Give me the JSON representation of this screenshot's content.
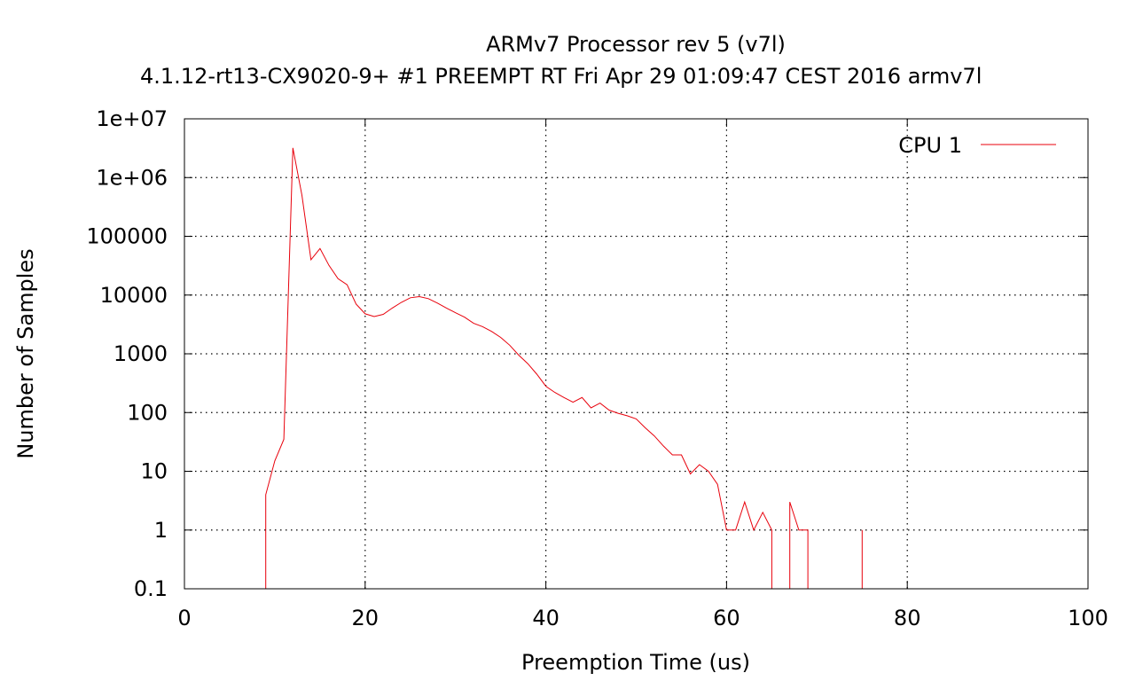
{
  "chart_data": {
    "type": "line",
    "title": "ARMv7 Processor rev 5 (v7l)",
    "subtitle": "4.1.12-rt13-CX9020-9+ #1 PREEMPT RT Fri Apr 29 01:09:47 CEST 2016 armv7l",
    "xlabel": "Preemption Time (us)",
    "ylabel": "Number of Samples",
    "xlim": [
      0,
      100
    ],
    "ylim": [
      0.1,
      10000000
    ],
    "yscale": "log",
    "grid": true,
    "legend_position": "top-right",
    "x_ticks": [
      {
        "value": 0,
        "label": "0"
      },
      {
        "value": 20,
        "label": "20"
      },
      {
        "value": 40,
        "label": "40"
      },
      {
        "value": 60,
        "label": "60"
      },
      {
        "value": 80,
        "label": "80"
      },
      {
        "value": 100,
        "label": "100"
      }
    ],
    "y_ticks": [
      {
        "value": 0.1,
        "label": "0.1"
      },
      {
        "value": 1,
        "label": "1"
      },
      {
        "value": 10,
        "label": "10"
      },
      {
        "value": 100,
        "label": "100"
      },
      {
        "value": 1000,
        "label": "1000"
      },
      {
        "value": 10000,
        "label": "10000"
      },
      {
        "value": 100000,
        "label": "100000"
      },
      {
        "value": 1000000,
        "label": "1e+06"
      },
      {
        "value": 10000000,
        "label": "1e+07"
      }
    ],
    "series": [
      {
        "name": "CPU 1",
        "color": "#e8000b",
        "points": [
          [
            9,
            0.1
          ],
          [
            9,
            4
          ],
          [
            10,
            15
          ],
          [
            11,
            35
          ],
          [
            12,
            3200000
          ],
          [
            13,
            500000
          ],
          [
            14,
            40000
          ],
          [
            15,
            62000
          ],
          [
            16,
            32000
          ],
          [
            17,
            19000
          ],
          [
            18,
            15000
          ],
          [
            19,
            7000
          ],
          [
            20,
            4800
          ],
          [
            21,
            4300
          ],
          [
            22,
            4700
          ],
          [
            23,
            6000
          ],
          [
            24,
            7500
          ],
          [
            25,
            9000
          ],
          [
            26,
            9400
          ],
          [
            27,
            8700
          ],
          [
            28,
            7300
          ],
          [
            29,
            6000
          ],
          [
            30,
            5000
          ],
          [
            31,
            4200
          ],
          [
            32,
            3300
          ],
          [
            33,
            2900
          ],
          [
            34,
            2400
          ],
          [
            35,
            1900
          ],
          [
            36,
            1400
          ],
          [
            37,
            950
          ],
          [
            38,
            680
          ],
          [
            39,
            450
          ],
          [
            40,
            280
          ],
          [
            41,
            220
          ],
          [
            42,
            180
          ],
          [
            43,
            150
          ],
          [
            44,
            180
          ],
          [
            45,
            120
          ],
          [
            46,
            145
          ],
          [
            47,
            110
          ],
          [
            48,
            97
          ],
          [
            49,
            88
          ],
          [
            50,
            78
          ],
          [
            51,
            55
          ],
          [
            52,
            40
          ],
          [
            53,
            27
          ],
          [
            54,
            19
          ],
          [
            55,
            19
          ],
          [
            56,
            9
          ],
          [
            57,
            13
          ],
          [
            58,
            10
          ],
          [
            59,
            6
          ],
          [
            60,
            1
          ],
          [
            61,
            1
          ],
          [
            62,
            3
          ],
          [
            63,
            1
          ],
          [
            64,
            2
          ],
          [
            65,
            1
          ],
          [
            65,
            0.1
          ],
          [
            67,
            0.1
          ],
          [
            67,
            3
          ],
          [
            68,
            1
          ],
          [
            69,
            1
          ],
          [
            69,
            0.1
          ],
          [
            75,
            0.1
          ],
          [
            75,
            1
          ],
          [
            75,
            0.1
          ]
        ]
      }
    ]
  }
}
